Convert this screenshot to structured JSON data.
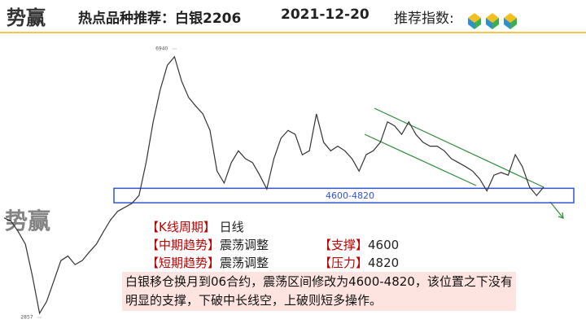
{
  "header": {
    "logo": "势赢",
    "title": "热点品种推荐：白银2206",
    "date": "2021-12-20",
    "rating_label": "推荐指数:"
  },
  "chart_data": {
    "type": "line",
    "color": "#333333",
    "values": [
      4370,
      4320,
      4160,
      3970,
      3480,
      2920,
      3100,
      3410,
      3720,
      3790,
      3660,
      3720,
      3850,
      3970,
      4160,
      4340,
      4470,
      4530,
      4590,
      4710,
      5210,
      5830,
      6320,
      6690,
      6820,
      6450,
      6200,
      6070,
      5950,
      5700,
      5080,
      4900,
      5210,
      5390,
      5270,
      5210,
      5020,
      4810,
      5270,
      5580,
      5700,
      5640,
      5330,
      5390,
      5950,
      5520,
      5390,
      5460,
      5390,
      5270,
      5080,
      5330,
      5390,
      5520,
      5830,
      5770,
      5640,
      5830,
      5640,
      5520,
      5460,
      5460,
      5390,
      5270,
      5210,
      5150,
      5080,
      4960,
      4780,
      5020,
      5060,
      5020,
      5330,
      5150,
      4840,
      4710,
      4840
    ],
    "ylim": [
      2857,
      6940
    ],
    "yticks": [
      2857,
      6940
    ],
    "band": [
      4600,
      4820
    ],
    "band_label": "4600-4820",
    "band_color": "#3355cc"
  },
  "analysis": {
    "period": [
      "【K线周期】",
      "日线"
    ],
    "mid": [
      "【中期趋势】",
      "震荡调整"
    ],
    "support": [
      "【支撑】",
      "4600"
    ],
    "short": [
      "【短期趋势】",
      "震荡调整"
    ],
    "resistance": [
      "【压力】",
      "4820"
    ]
  },
  "note": "白银移仓换月到06合约，震荡区间修改为4600-4820，该位置之下没有明显的支撑，下破中长线空，上破则短多操作。"
}
